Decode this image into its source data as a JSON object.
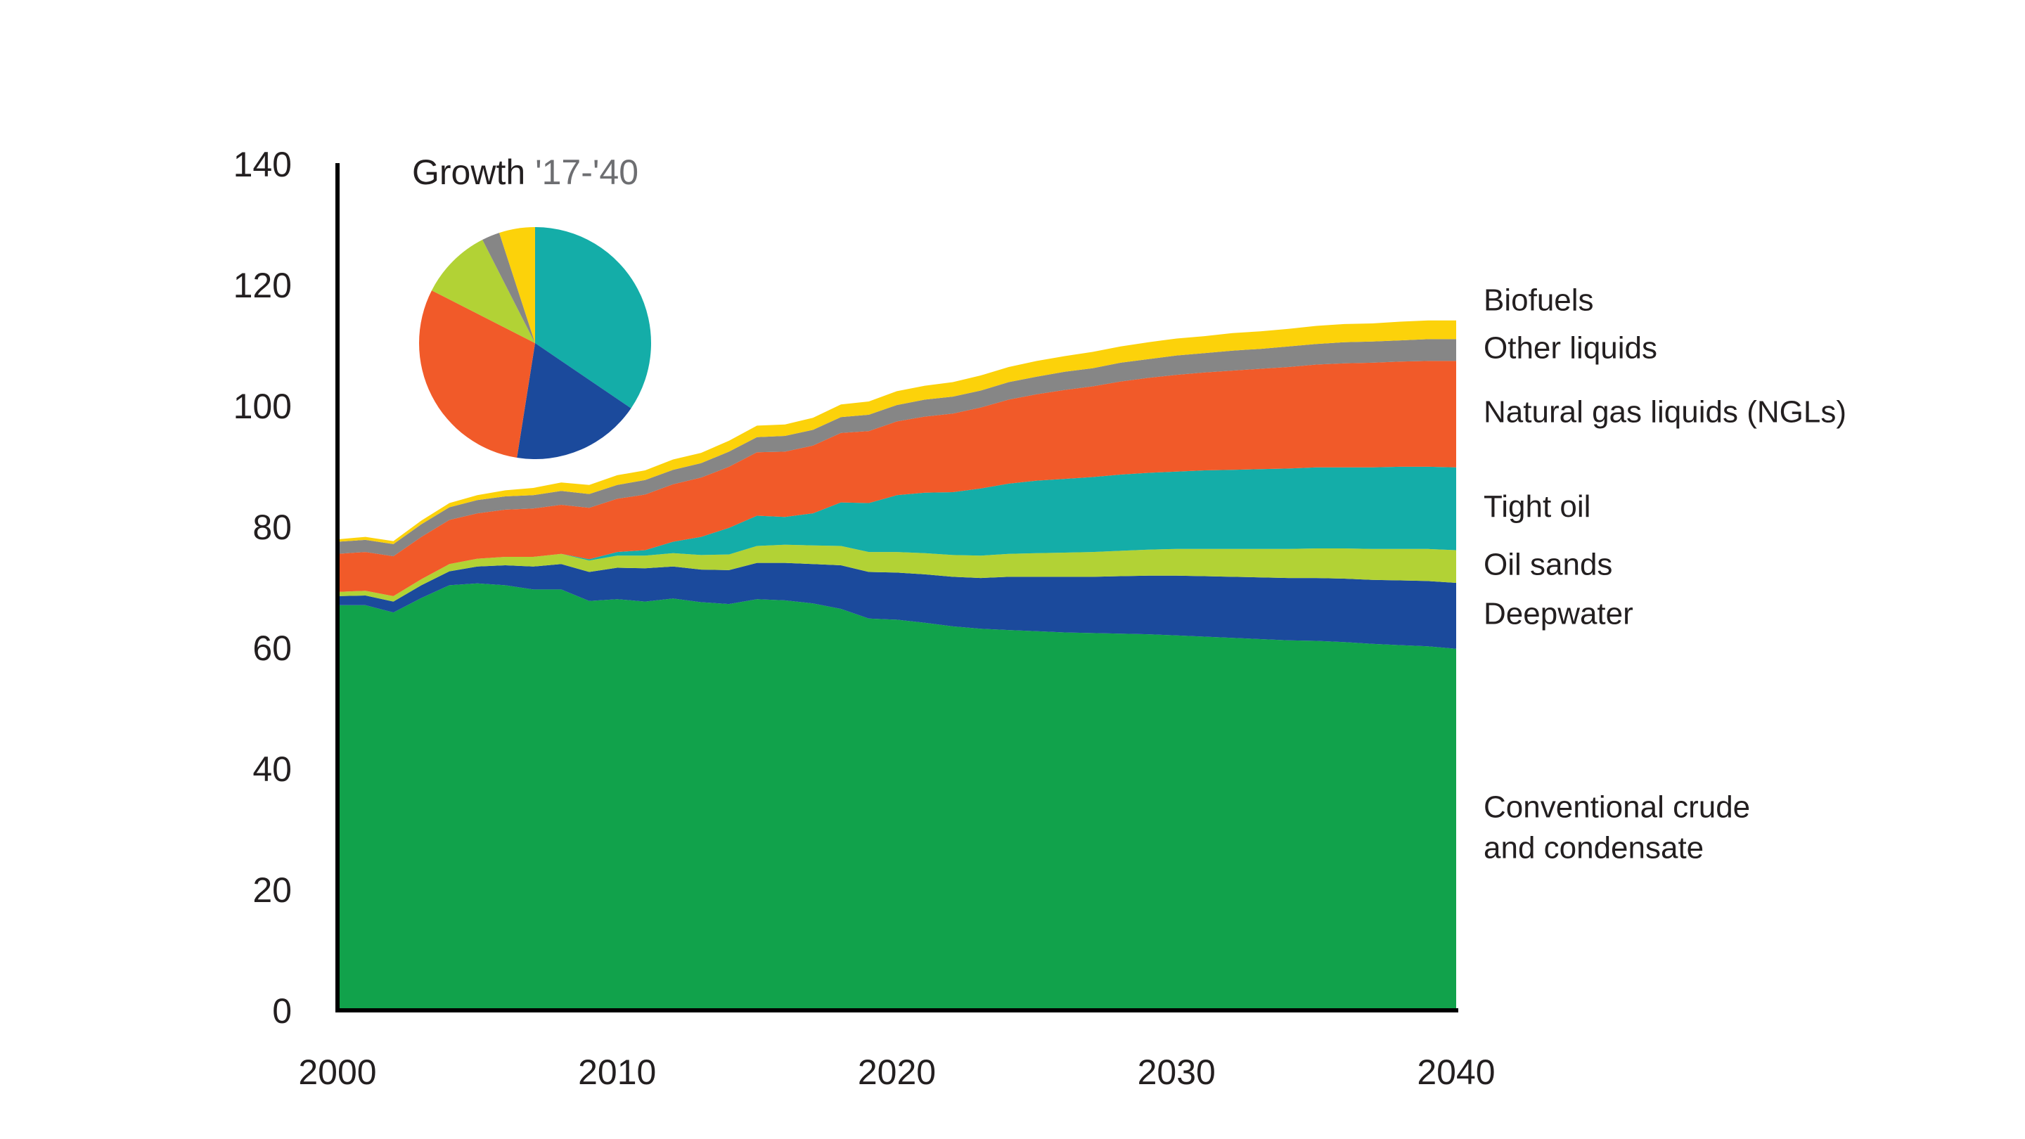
{
  "chart_data": [
    {
      "type": "area",
      "stacked": true,
      "x": [
        2000,
        2001,
        2002,
        2003,
        2004,
        2005,
        2006,
        2007,
        2008,
        2009,
        2010,
        2011,
        2012,
        2013,
        2014,
        2015,
        2016,
        2017,
        2018,
        2019,
        2020,
        2021,
        2022,
        2023,
        2024,
        2025,
        2026,
        2027,
        2028,
        2029,
        2030,
        2031,
        2032,
        2033,
        2034,
        2035,
        2036,
        2037,
        2038,
        2039,
        2040
      ],
      "xticks": [
        2000,
        2010,
        2020,
        2030,
        2040
      ],
      "ylim": [
        0,
        140
      ],
      "yticks": [
        0,
        20,
        40,
        60,
        80,
        100,
        120,
        140
      ],
      "xlabel": "",
      "ylabel": "",
      "title": "",
      "grid": false,
      "series": [
        {
          "name": "Conventional crude and condensate",
          "label_lines": [
            "Conventional crude",
            "and condensate"
          ],
          "color": "#11a24b",
          "values": [
            67.0,
            67.0,
            65.8,
            68.2,
            70.3,
            70.6,
            70.3,
            69.6,
            69.6,
            67.7,
            68.0,
            67.6,
            68.1,
            67.5,
            67.2,
            68.0,
            67.8,
            67.3,
            66.4,
            64.8,
            64.6,
            64.1,
            63.5,
            63.1,
            62.9,
            62.7,
            62.5,
            62.4,
            62.3,
            62.2,
            62.0,
            61.8,
            61.6,
            61.4,
            61.2,
            61.1,
            60.9,
            60.6,
            60.4,
            60.2,
            59.8
          ]
        },
        {
          "name": "Deepwater",
          "label_lines": [
            "Deepwater"
          ],
          "color": "#1b4a9c",
          "values": [
            1.5,
            1.6,
            1.8,
            2.1,
            2.3,
            2.8,
            3.3,
            3.8,
            4.2,
            4.8,
            5.2,
            5.5,
            5.3,
            5.4,
            5.6,
            6.0,
            6.2,
            6.5,
            7.2,
            7.7,
            7.8,
            8.0,
            8.2,
            8.4,
            8.8,
            9.0,
            9.2,
            9.3,
            9.5,
            9.7,
            9.9,
            10.0,
            10.1,
            10.2,
            10.3,
            10.4,
            10.5,
            10.6,
            10.7,
            10.8,
            10.9
          ]
        },
        {
          "name": "Oil sands",
          "label_lines": [
            "Oil sands"
          ],
          "color": "#b2d235",
          "values": [
            0.7,
            0.8,
            0.9,
            1.0,
            1.2,
            1.3,
            1.4,
            1.6,
            1.7,
            1.9,
            2.0,
            2.1,
            2.2,
            2.4,
            2.6,
            2.8,
            3.0,
            3.1,
            3.2,
            3.3,
            3.4,
            3.5,
            3.6,
            3.7,
            3.8,
            3.9,
            4.0,
            4.1,
            4.2,
            4.3,
            4.4,
            4.5,
            4.6,
            4.7,
            4.8,
            4.9,
            5.0,
            5.1,
            5.2,
            5.3,
            5.4
          ]
        },
        {
          "name": "Tight oil",
          "label_lines": [
            "Tight oil"
          ],
          "color": "#14ada8",
          "values": [
            0,
            0,
            0,
            0,
            0,
            0,
            0,
            0,
            0,
            0.2,
            0.6,
            0.9,
            1.9,
            3.0,
            4.4,
            5.0,
            4.6,
            5.3,
            7.2,
            8.1,
            9.4,
            10.0,
            10.4,
            11.1,
            11.6,
            12.0,
            12.2,
            12.4,
            12.6,
            12.7,
            12.8,
            13.0,
            13.1,
            13.2,
            13.3,
            13.4,
            13.4,
            13.5,
            13.6,
            13.6,
            13.7
          ]
        },
        {
          "name": "Natural gas liquids (NGLs)",
          "label_lines": [
            "Natural gas liquids (NGLs)"
          ],
          "color": "#f15a29",
          "values": [
            6.3,
            6.4,
            6.6,
            7.0,
            7.3,
            7.5,
            7.8,
            8.0,
            8.1,
            8.5,
            8.8,
            9.2,
            9.5,
            9.8,
            10.1,
            10.5,
            10.8,
            11.2,
            11.5,
            11.9,
            12.2,
            12.6,
            13.0,
            13.4,
            13.9,
            14.3,
            14.7,
            15.0,
            15.4,
            15.7,
            16.0,
            16.2,
            16.4,
            16.6,
            16.8,
            17.0,
            17.2,
            17.3,
            17.4,
            17.5,
            17.6
          ]
        },
        {
          "name": "Other liquids",
          "label_lines": [
            "Other liquids"
          ],
          "color": "#868686",
          "values": [
            2.0,
            2.0,
            2.0,
            2.1,
            2.1,
            2.2,
            2.2,
            2.2,
            2.3,
            2.3,
            2.3,
            2.4,
            2.4,
            2.4,
            2.5,
            2.5,
            2.6,
            2.6,
            2.6,
            2.7,
            2.7,
            2.8,
            2.8,
            2.8,
            2.9,
            2.9,
            3.0,
            3.0,
            3.1,
            3.1,
            3.2,
            3.2,
            3.3,
            3.3,
            3.4,
            3.4,
            3.5,
            3.5,
            3.5,
            3.6,
            3.6
          ]
        },
        {
          "name": "Biofuels",
          "label_lines": [
            "Biofuels"
          ],
          "color": "#fcd20a",
          "values": [
            0.4,
            0.5,
            0.5,
            0.6,
            0.7,
            0.8,
            1.0,
            1.2,
            1.4,
            1.5,
            1.6,
            1.6,
            1.7,
            1.7,
            1.8,
            1.9,
            1.9,
            2.0,
            2.1,
            2.2,
            2.3,
            2.3,
            2.4,
            2.5,
            2.5,
            2.6,
            2.6,
            2.7,
            2.7,
            2.8,
            2.8,
            2.8,
            2.9,
            2.9,
            2.9,
            3.0,
            3.0,
            3.0,
            3.1,
            3.1,
            3.1
          ]
        }
      ]
    },
    {
      "type": "pie",
      "title_main": "Growth ",
      "title_years": "'17-'40",
      "title_years_color": "#6d6e71",
      "start_angle_deg": 0,
      "direction": "clockwise",
      "slices": [
        {
          "name": "Tight oil",
          "value": 34.5,
          "color": "#14ada8"
        },
        {
          "name": "Deepwater",
          "value": 18.0,
          "color": "#1b4a9c"
        },
        {
          "name": "Natural gas liquids (NGLs)",
          "value": 30.0,
          "color": "#f15a29"
        },
        {
          "name": "Oil sands",
          "value": 10.0,
          "color": "#b2d235"
        },
        {
          "name": "Other liquids",
          "value": 2.5,
          "color": "#868686"
        },
        {
          "name": "Biofuels",
          "value": 5.0,
          "color": "#fcd20a"
        }
      ]
    }
  ]
}
